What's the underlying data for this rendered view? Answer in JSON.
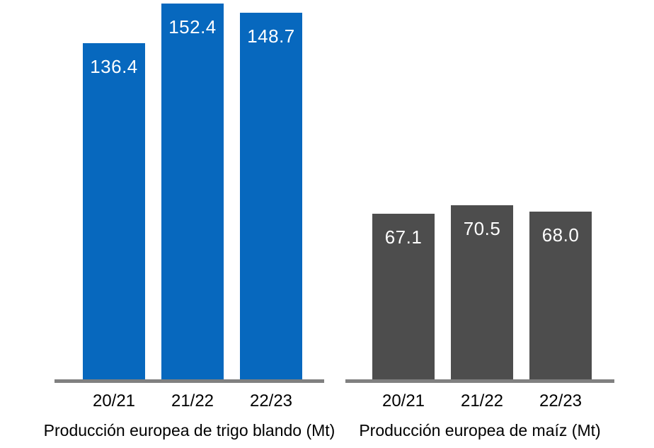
{
  "page": {
    "background": "#ffffff",
    "text_color": "#000000",
    "axis_color": "#808080"
  },
  "chart_data": [
    {
      "type": "bar",
      "title": "Producción europea de trigo blando (Mt)",
      "categories": [
        "20/21",
        "21/22",
        "22/23"
      ],
      "values": [
        136.4,
        152.4,
        148.7
      ],
      "value_labels": [
        "136.4",
        "152.4",
        "148.7"
      ],
      "bar_color": "#0768BE",
      "value_label_color": "#ffffff",
      "axis_color": "#808080",
      "ylim": [
        0,
        154
      ],
      "grid": false,
      "legend_position": "none",
      "xlabel": "",
      "ylabel": ""
    },
    {
      "type": "bar",
      "title": "Producción europea de maíz (Mt)",
      "categories": [
        "20/21",
        "21/22",
        "22/23"
      ],
      "values": [
        67.1,
        70.5,
        68.0
      ],
      "value_labels": [
        "67.1",
        "70.5",
        "68.0"
      ],
      "bar_color": "#4D4D4D",
      "value_label_color": "#ffffff",
      "axis_color": "#808080",
      "ylim": [
        0,
        154
      ],
      "grid": false,
      "legend_position": "none",
      "xlabel": "",
      "ylabel": ""
    }
  ]
}
